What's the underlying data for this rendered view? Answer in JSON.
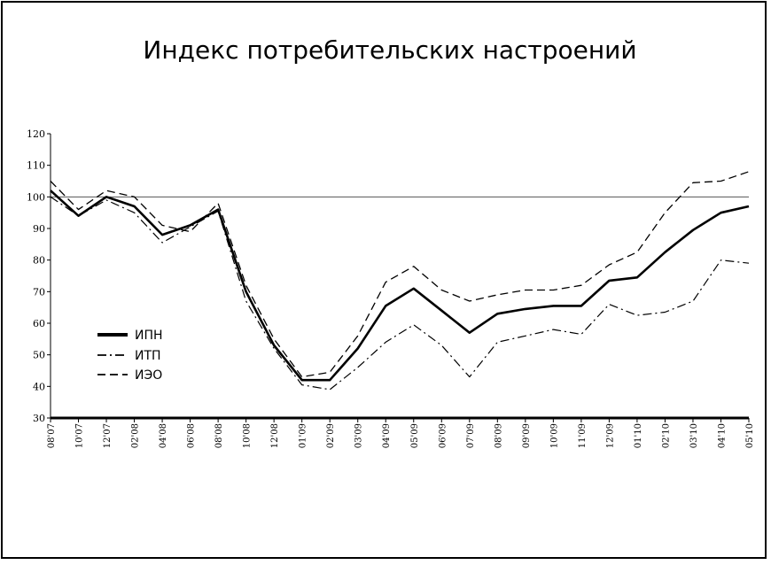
{
  "chart_data": {
    "type": "line",
    "title": "Индекс потребительских настроений",
    "xlabel": "",
    "ylabel": "",
    "ylim": [
      30,
      120
    ],
    "yticks": [
      30,
      40,
      50,
      60,
      70,
      80,
      90,
      100,
      110,
      120
    ],
    "reference_line": 100,
    "grid": false,
    "legend_position": "left-middle",
    "x": [
      "08'07",
      "10'07",
      "12'07",
      "02'08",
      "04'08",
      "06'08",
      "08'08",
      "10'08",
      "12'08",
      "01'09",
      "02'09",
      "03'09",
      "04'09",
      "05'09",
      "06'09",
      "07'09",
      "08'09",
      "09'09",
      "10'09",
      "11'09",
      "12'09",
      "01'10",
      "02'10",
      "03'10",
      "04'10",
      "05'10"
    ],
    "series": [
      {
        "name": "ИПН",
        "style": "solid-thick",
        "color": "#000000",
        "values": [
          102,
          94,
          100,
          97,
          88,
          91,
          96,
          70,
          53,
          42,
          42,
          52,
          65.5,
          71,
          64,
          57,
          63,
          64.5,
          65.5,
          65.5,
          73.5,
          74.5,
          82.5,
          89.5,
          95,
          97
        ]
      },
      {
        "name": "ИТП",
        "style": "dash-dot",
        "color": "#000000",
        "values": [
          100,
          94,
          99,
          95,
          85.5,
          90.5,
          95.5,
          67,
          52,
          40.5,
          39,
          46,
          54,
          59.5,
          53,
          43,
          54,
          56,
          58,
          56.5,
          66,
          62.5,
          63.5,
          67,
          80,
          79
        ]
      },
      {
        "name": "ИЭО",
        "style": "dashed",
        "color": "#000000",
        "values": [
          105,
          96,
          102,
          100,
          91,
          89,
          98,
          72,
          55,
          43,
          44.5,
          56,
          73,
          78,
          70.5,
          67,
          69,
          70.5,
          70.5,
          72,
          78.5,
          82.5,
          95,
          104.5,
          105,
          108
        ]
      }
    ]
  }
}
